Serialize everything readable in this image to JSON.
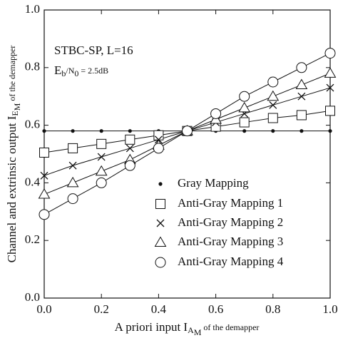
{
  "chart_data": {
    "type": "line",
    "xlabel": [
      "A priori input I",
      "A",
      "M",
      " of the demapper"
    ],
    "ylabel": [
      "Channel and extrinsic output I",
      "E",
      "M",
      " of the demapper"
    ],
    "annotations": [
      [
        "STBC-SP, L=16"
      ],
      [
        "E",
        "b",
        "/N",
        "0",
        " = 2.5dB"
      ]
    ],
    "x": [
      0,
      0.1,
      0.2,
      0.3,
      0.4,
      0.5,
      0.6,
      0.7,
      0.8,
      0.9,
      1.0
    ],
    "series": [
      {
        "name": "Gray Mapping",
        "color": "#111",
        "marker": "dot",
        "values": [
          0.58,
          0.58,
          0.58,
          0.58,
          0.58,
          0.58,
          0.58,
          0.58,
          0.58,
          0.58,
          0.58
        ]
      },
      {
        "name": "Anti-Gray Mapping 1",
        "color": "#111",
        "marker": "square",
        "values": [
          0.505,
          0.52,
          0.535,
          0.55,
          0.565,
          0.58,
          0.595,
          0.61,
          0.625,
          0.635,
          0.65
        ]
      },
      {
        "name": "Anti-Gray Mapping 2",
        "color": "#111",
        "marker": "x",
        "values": [
          0.425,
          0.46,
          0.49,
          0.52,
          0.55,
          0.58,
          0.61,
          0.64,
          0.67,
          0.7,
          0.73
        ]
      },
      {
        "name": "Anti-Gray Mapping 3",
        "color": "#111",
        "marker": "triangle",
        "values": [
          0.36,
          0.4,
          0.44,
          0.48,
          0.53,
          0.58,
          0.62,
          0.66,
          0.7,
          0.74,
          0.78
        ]
      },
      {
        "name": "Anti-Gray Mapping 4",
        "color": "#111",
        "marker": "circle",
        "values": [
          0.29,
          0.345,
          0.4,
          0.46,
          0.52,
          0.58,
          0.64,
          0.7,
          0.75,
          0.8,
          0.85
        ]
      }
    ],
    "xlim": [
      0,
      1
    ],
    "ylim": [
      0,
      1
    ],
    "xticks": [
      {
        "value": 0,
        "label": "0.0"
      },
      0.2,
      0.4,
      0.6,
      0.8,
      {
        "value": 1,
        "label": "1.0"
      }
    ],
    "yticks": [
      {
        "value": 0,
        "label": "0.0"
      },
      0.2,
      0.4,
      0.6,
      0.8,
      {
        "value": 1,
        "label": "1.0"
      }
    ],
    "grid": false,
    "legend": "lower right"
  }
}
